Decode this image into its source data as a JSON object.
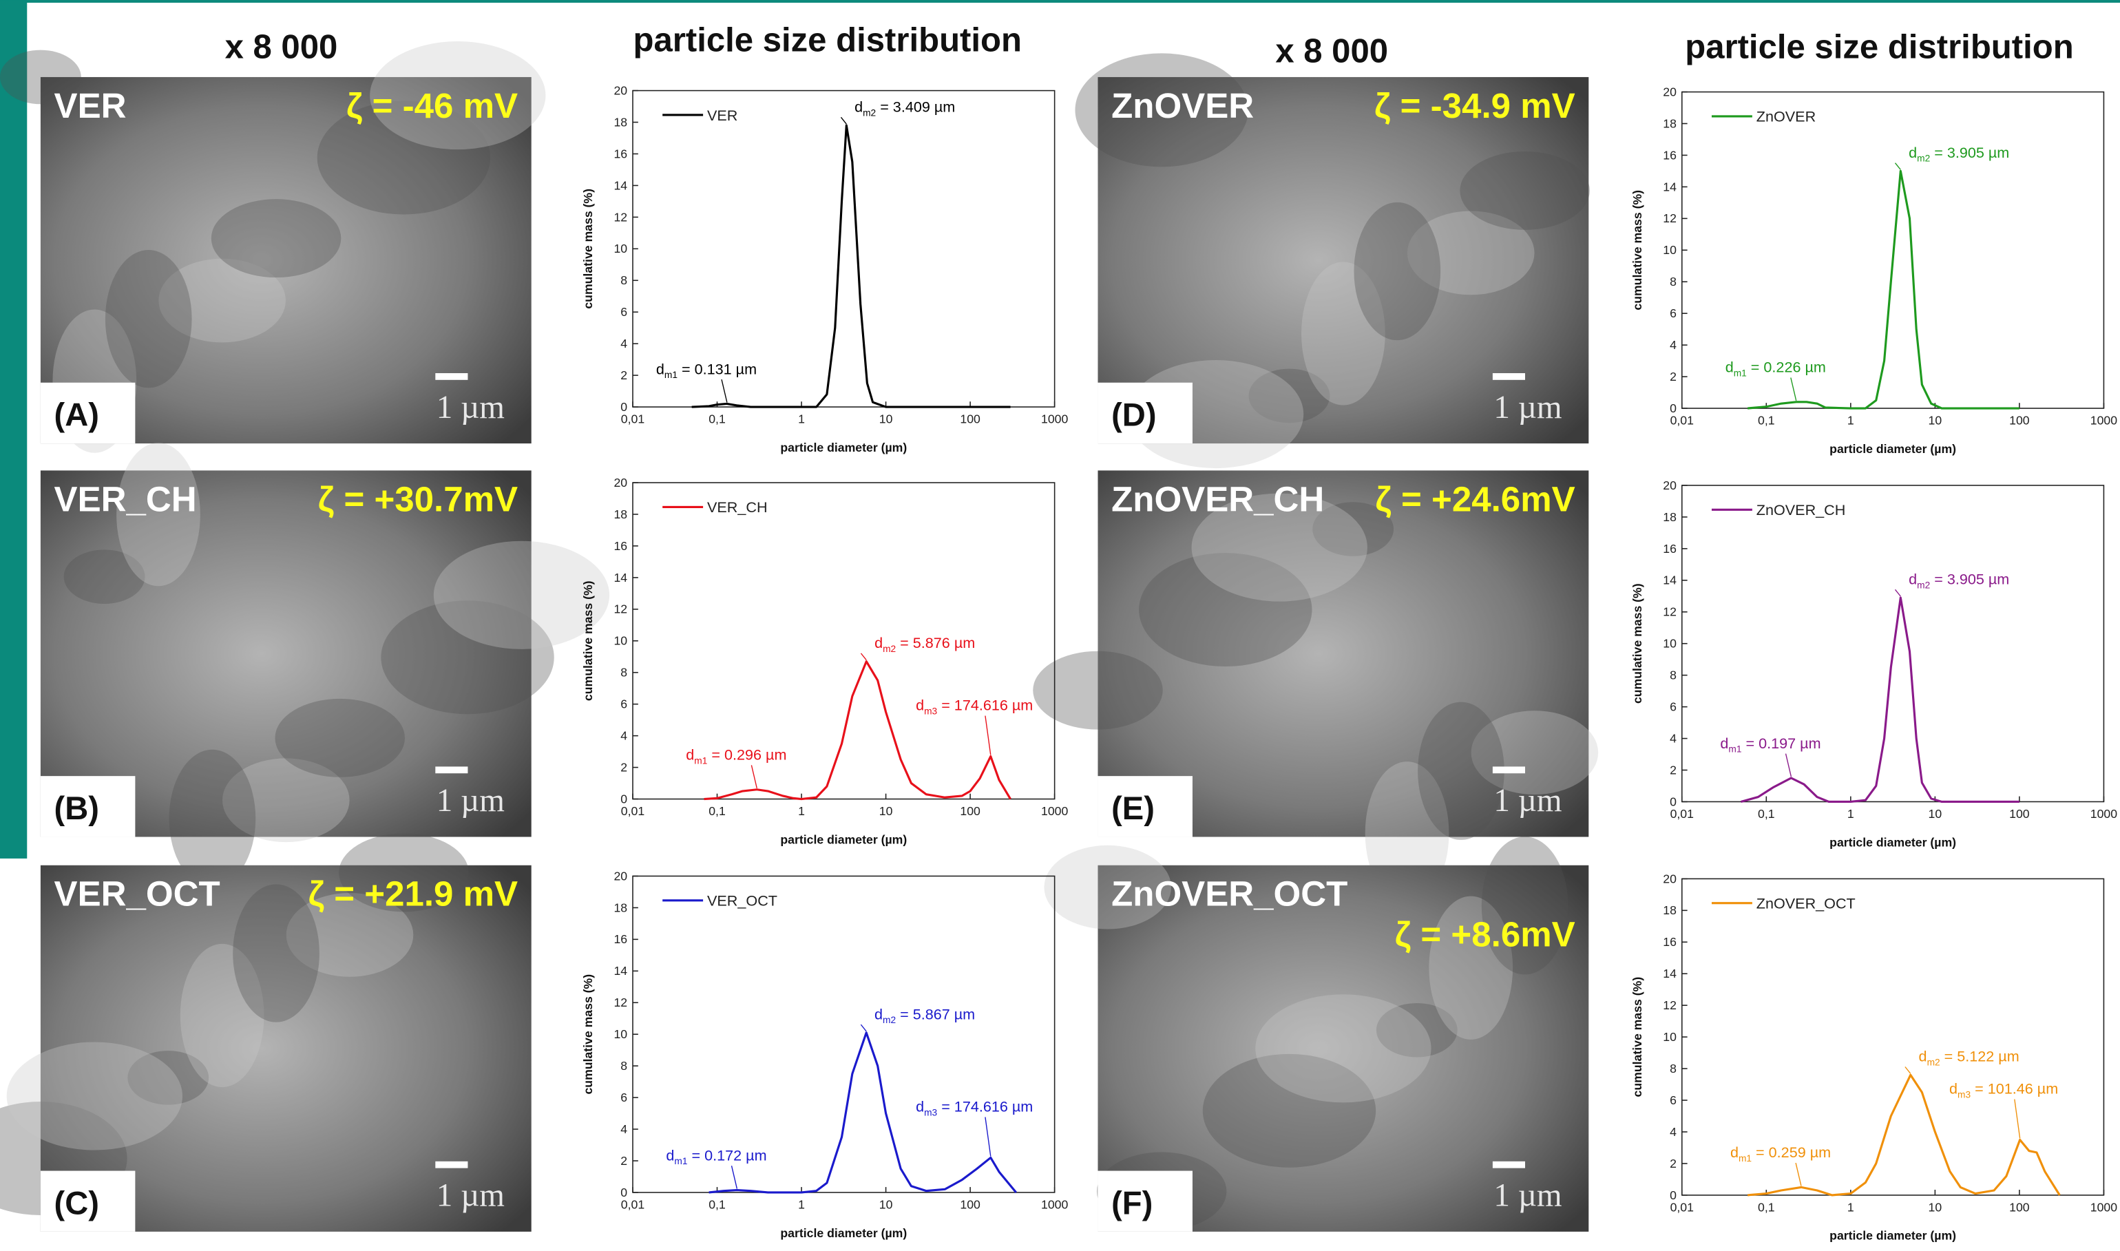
{
  "headers": [
    "x 8 000",
    "particle size distribution",
    "x 8 000",
    "particle size distribution"
  ],
  "images": [
    {
      "letter": "(A)",
      "name": "VER",
      "zeta": "ζ = -46 mV",
      "scale": "1 µm"
    },
    {
      "letter": "(B)",
      "name": "VER_CH",
      "zeta": "ζ = +30.7mV",
      "scale": "1 µm"
    },
    {
      "letter": "(C)",
      "name": "VER_OCT",
      "zeta": "ζ = +21.9 mV",
      "scale": "1 µm"
    },
    {
      "letter": "(D)",
      "name": "ZnOVER",
      "zeta": "ζ = -34.9 mV",
      "scale": "1 µm"
    },
    {
      "letter": "(E)",
      "name": "ZnOVER_CH",
      "zeta": "ζ = +24.6mV",
      "scale": "1 µm"
    },
    {
      "letter": "(F)",
      "name": "ZnOVER_OCT",
      "zeta": "ζ = +8.6mV",
      "scale": "1 µm"
    }
  ],
  "chart_data": [
    {
      "type": "line",
      "xlabel": "particle diameter (µm)",
      "ylabel": "cumulative mass (%)",
      "xscale": "log",
      "legend": "upper left",
      "xlim": [
        0.01,
        1000
      ],
      "ylim": [
        0,
        20
      ],
      "xticks": [
        {
          "value": 0.01,
          "label": "0,01"
        },
        {
          "value": 0.1,
          "label": "0,1"
        },
        1,
        10,
        100,
        1000
      ],
      "yticks": [
        0,
        2,
        4,
        6,
        8,
        10,
        12,
        14,
        16,
        18,
        20
      ],
      "x": [
        0.05,
        0.08,
        0.1,
        0.13,
        0.17,
        0.25,
        0.5,
        1,
        1.5,
        2,
        2.5,
        3,
        3.409,
        4,
        5,
        6,
        7,
        10,
        100,
        300
      ],
      "series": [
        {
          "name": "VER",
          "color": "#000000",
          "values": [
            0,
            0.05,
            0.15,
            0.2,
            0.1,
            0,
            0,
            0,
            0,
            0.8,
            5,
            13,
            17.8,
            15.5,
            6.5,
            1.5,
            0.3,
            0,
            0,
            0
          ]
        }
      ],
      "annotations": [
        {
          "parts": [
            "d",
            "m1",
            " = 0.131 µm"
          ],
          "x": 0.131,
          "y": 0.2
        },
        {
          "parts": [
            "d",
            "m2",
            " = 3.409 µm"
          ],
          "x": 3.409,
          "y": 17.8
        }
      ]
    },
    {
      "type": "line",
      "xlabel": "particle diameter (µm)",
      "ylabel": "cumulative mass (%)",
      "xscale": "log",
      "legend": "upper left",
      "xlim": [
        0.01,
        1000
      ],
      "ylim": [
        0,
        20
      ],
      "xticks": [
        {
          "value": 0.01,
          "label": "0,01"
        },
        {
          "value": 0.1,
          "label": "0,1"
        },
        1,
        10,
        100,
        1000
      ],
      "yticks": [
        0,
        2,
        4,
        6,
        8,
        10,
        12,
        14,
        16,
        18,
        20
      ],
      "x": [
        0.07,
        0.1,
        0.15,
        0.2,
        0.296,
        0.4,
        0.6,
        0.8,
        1,
        1.5,
        2,
        3,
        4,
        5.876,
        8,
        10,
        15,
        20,
        30,
        50,
        80,
        100,
        130,
        174.616,
        220,
        300
      ],
      "series": [
        {
          "name": "VER_CH",
          "color": "#e8101a",
          "values": [
            0,
            0.05,
            0.3,
            0.5,
            0.6,
            0.5,
            0.2,
            0.05,
            0,
            0.1,
            0.8,
            3.5,
            6.5,
            8.7,
            7.5,
            5.5,
            2.5,
            1,
            0.3,
            0.1,
            0.2,
            0.5,
            1.3,
            2.7,
            1.2,
            0
          ]
        }
      ],
      "annotations": [
        {
          "parts": [
            "d",
            "m1",
            " = 0.296 µm"
          ],
          "x": 0.296,
          "y": 0.6
        },
        {
          "parts": [
            "d",
            "m2",
            " = 5.876 µm"
          ],
          "x": 5.876,
          "y": 8.7
        },
        {
          "parts": [
            "d",
            "m3",
            " = 174.616 µm"
          ],
          "x": 174.616,
          "y": 2.7
        }
      ]
    },
    {
      "type": "line",
      "xlabel": "particle diameter (µm)",
      "ylabel": "cumulative mass (%)",
      "xscale": "log",
      "legend": "upper left",
      "xlim": [
        0.01,
        1000
      ],
      "ylim": [
        0,
        20
      ],
      "xticks": [
        {
          "value": 0.01,
          "label": "0,01"
        },
        {
          "value": 0.1,
          "label": "0,1"
        },
        1,
        10,
        100,
        1000
      ],
      "yticks": [
        0,
        2,
        4,
        6,
        8,
        10,
        12,
        14,
        16,
        18,
        20
      ],
      "x": [
        0.08,
        0.12,
        0.172,
        0.25,
        0.4,
        1,
        1.5,
        2,
        3,
        4,
        5.867,
        8,
        10,
        15,
        20,
        30,
        50,
        80,
        120,
        174.616,
        220,
        350
      ],
      "series": [
        {
          "name": "VER_OCT",
          "color": "#1a1acc",
          "values": [
            0,
            0.1,
            0.15,
            0.1,
            0,
            0,
            0.1,
            0.6,
            3.5,
            7.5,
            10.1,
            8,
            5,
            1.5,
            0.4,
            0.1,
            0.2,
            0.8,
            1.5,
            2.2,
            1.3,
            0
          ]
        }
      ],
      "annotations": [
        {
          "parts": [
            "d",
            "m1",
            " = 0.172 µm"
          ],
          "x": 0.172,
          "y": 0.15
        },
        {
          "parts": [
            "d",
            "m2",
            " = 5.867 µm"
          ],
          "x": 5.867,
          "y": 10.1
        },
        {
          "parts": [
            "d",
            "m3",
            " = 174.616 µm"
          ],
          "x": 174.616,
          "y": 2.2
        }
      ]
    },
    {
      "type": "line",
      "xlabel": "particle diameter (µm)",
      "ylabel": "cumulative mass (%)",
      "xscale": "log",
      "legend": "upper left",
      "xlim": [
        0.01,
        1000
      ],
      "ylim": [
        0,
        20
      ],
      "xticks": [
        {
          "value": 0.01,
          "label": "0,01"
        },
        {
          "value": 0.1,
          "label": "0,1"
        },
        1,
        10,
        100,
        1000
      ],
      "yticks": [
        0,
        2,
        4,
        6,
        8,
        10,
        12,
        14,
        16,
        18,
        20
      ],
      "x": [
        0.06,
        0.1,
        0.15,
        0.226,
        0.3,
        0.4,
        0.5,
        1,
        1.5,
        2,
        2.5,
        3,
        3.905,
        5,
        6,
        7,
        9,
        12,
        100
      ],
      "series": [
        {
          "name": "ZnOVER",
          "color": "#1e9a1e",
          "values": [
            0,
            0.1,
            0.3,
            0.4,
            0.4,
            0.3,
            0.05,
            0,
            0,
            0.5,
            3,
            8,
            15,
            12,
            5,
            1.5,
            0.3,
            0,
            0
          ]
        }
      ],
      "annotations": [
        {
          "parts": [
            "d",
            "m1",
            " = 0.226 µm"
          ],
          "x": 0.226,
          "y": 0.4
        },
        {
          "parts": [
            "d",
            "m2",
            " = 3.905 µm"
          ],
          "x": 3.905,
          "y": 15
        }
      ]
    },
    {
      "type": "line",
      "xlabel": "particle diameter (µm)",
      "ylabel": "cumulative mass (%)",
      "xscale": "log",
      "legend": "upper left",
      "xlim": [
        0.01,
        1000
      ],
      "ylim": [
        0,
        20
      ],
      "xticks": [
        {
          "value": 0.01,
          "label": "0,01"
        },
        {
          "value": 0.1,
          "label": "0,1"
        },
        1,
        10,
        100,
        1000
      ],
      "yticks": [
        0,
        2,
        4,
        6,
        8,
        10,
        12,
        14,
        16,
        18,
        20
      ],
      "x": [
        0.05,
        0.08,
        0.12,
        0.197,
        0.28,
        0.4,
        0.55,
        1,
        1.5,
        2,
        2.5,
        3,
        3.905,
        5,
        6,
        7,
        9,
        12,
        100
      ],
      "series": [
        {
          "name": "ZnOVER_CH",
          "color": "#8a1a8a",
          "values": [
            0,
            0.3,
            0.9,
            1.5,
            1.1,
            0.3,
            0,
            0,
            0.1,
            1,
            4,
            8.5,
            12.9,
            9.5,
            4,
            1.2,
            0.2,
            0,
            0
          ]
        }
      ],
      "annotations": [
        {
          "parts": [
            "d",
            "m1",
            " = 0.197 µm"
          ],
          "x": 0.197,
          "y": 1.5
        },
        {
          "parts": [
            "d",
            "m2",
            " = 3.905 µm"
          ],
          "x": 3.905,
          "y": 12.9
        }
      ]
    },
    {
      "type": "line",
      "xlabel": "particle diameter (µm)",
      "ylabel": "cumulative mass (%)",
      "xscale": "log",
      "legend": "upper left",
      "xlim": [
        0.01,
        1000
      ],
      "ylim": [
        0,
        20
      ],
      "xticks": [
        {
          "value": 0.01,
          "label": "0,01"
        },
        {
          "value": 0.1,
          "label": "0,1"
        },
        1,
        10,
        100,
        1000
      ],
      "yticks": [
        0,
        2,
        4,
        6,
        8,
        10,
        12,
        14,
        16,
        18,
        20
      ],
      "x": [
        0.06,
        0.1,
        0.15,
        0.259,
        0.4,
        0.6,
        1,
        1.5,
        2,
        3,
        5.122,
        7,
        10,
        15,
        20,
        30,
        50,
        70,
        101.46,
        130,
        160,
        200,
        300
      ],
      "series": [
        {
          "name": "ZnOVER_OCT",
          "color": "#f0900a",
          "values": [
            0,
            0.1,
            0.3,
            0.5,
            0.3,
            0,
            0.1,
            0.8,
            2,
            5,
            7.6,
            6.5,
            4,
            1.5,
            0.5,
            0.1,
            0.3,
            1.2,
            3.5,
            2.8,
            2.7,
            1.5,
            0
          ]
        }
      ],
      "annotations": [
        {
          "parts": [
            "d",
            "m1",
            " = 0.259 µm"
          ],
          "x": 0.259,
          "y": 0.5
        },
        {
          "parts": [
            "d",
            "m2",
            " = 5.122 µm"
          ],
          "x": 5.122,
          "y": 7.6
        },
        {
          "parts": [
            "d",
            "m3",
            " = 101.46 µm"
          ],
          "x": 101.46,
          "y": 3.5
        }
      ]
    }
  ]
}
